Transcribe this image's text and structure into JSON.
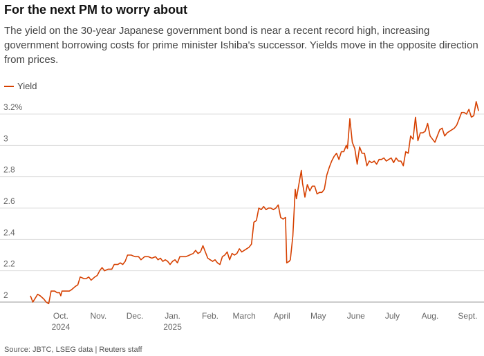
{
  "title": "For the next PM to worry about",
  "subtitle": "The yield on the 30-year Japanese government bond is near a recent record high, increasing government borrowing costs for prime minister Ishiba's successor. Yields move in the opposite direction from prices.",
  "source": "Source: JBTC, LSEG data | Reuters staff",
  "chart_data": {
    "type": "line",
    "title": "For the next PM to worry about",
    "xlabel": "",
    "ylabel": "",
    "ylim": [
      2.0,
      3.3
    ],
    "y_ticks": [
      {
        "value": 3.2,
        "label": "3.2%"
      },
      {
        "value": 3.0,
        "label": "3"
      },
      {
        "value": 2.8,
        "label": "2.8"
      },
      {
        "value": 2.6,
        "label": "2.6"
      },
      {
        "value": 2.4,
        "label": "2.4"
      },
      {
        "value": 2.2,
        "label": "2.2"
      },
      {
        "value": 2.0,
        "label": "2"
      }
    ],
    "x_range": [
      "2024-09-20",
      "2025-09-25"
    ],
    "x_ticks": [
      {
        "date": "2024-10-15",
        "label": "Oct.",
        "sublabel": "2024"
      },
      {
        "date": "2024-11-15",
        "label": "Nov.",
        "sublabel": ""
      },
      {
        "date": "2024-12-15",
        "label": "Dec.",
        "sublabel": ""
      },
      {
        "date": "2025-01-15",
        "label": "Jan.",
        "sublabel": "2025"
      },
      {
        "date": "2025-02-15",
        "label": "Feb.",
        "sublabel": ""
      },
      {
        "date": "2025-03-15",
        "label": "March",
        "sublabel": ""
      },
      {
        "date": "2025-04-15",
        "label": "April",
        "sublabel": ""
      },
      {
        "date": "2025-05-15",
        "label": "May",
        "sublabel": ""
      },
      {
        "date": "2025-06-15",
        "label": "June",
        "sublabel": ""
      },
      {
        "date": "2025-07-15",
        "label": "July",
        "sublabel": ""
      },
      {
        "date": "2025-08-15",
        "label": "Aug.",
        "sublabel": ""
      },
      {
        "date": "2025-09-15",
        "label": "Sept.",
        "sublabel": ""
      }
    ],
    "grid": true,
    "legend": "top-left",
    "series": [
      {
        "name": "Yield",
        "color": "#d64000",
        "points": [
          [
            "2024-09-20",
            2.04
          ],
          [
            "2024-09-22",
            2.0
          ],
          [
            "2024-09-26",
            2.05
          ],
          [
            "2024-09-28",
            2.04
          ],
          [
            "2024-10-01",
            2.02
          ],
          [
            "2024-10-03",
            2.0
          ],
          [
            "2024-10-05",
            1.99
          ],
          [
            "2024-10-07",
            2.07
          ],
          [
            "2024-10-10",
            2.07
          ],
          [
            "2024-10-12",
            2.06
          ],
          [
            "2024-10-14",
            2.06
          ],
          [
            "2024-10-15",
            2.04
          ],
          [
            "2024-10-16",
            2.07
          ],
          [
            "2024-10-18",
            2.07
          ],
          [
            "2024-10-22",
            2.07
          ],
          [
            "2024-10-24",
            2.08
          ],
          [
            "2024-10-27",
            2.1
          ],
          [
            "2024-10-29",
            2.11
          ],
          [
            "2024-10-31",
            2.16
          ],
          [
            "2024-11-03",
            2.15
          ],
          [
            "2024-11-05",
            2.15
          ],
          [
            "2024-11-07",
            2.16
          ],
          [
            "2024-11-09",
            2.14
          ],
          [
            "2024-11-12",
            2.16
          ],
          [
            "2024-11-14",
            2.17
          ],
          [
            "2024-11-16",
            2.2
          ],
          [
            "2024-11-18",
            2.22
          ],
          [
            "2024-11-20",
            2.2
          ],
          [
            "2024-11-23",
            2.21
          ],
          [
            "2024-11-26",
            2.21
          ],
          [
            "2024-11-28",
            2.24
          ],
          [
            "2024-12-01",
            2.24
          ],
          [
            "2024-12-03",
            2.25
          ],
          [
            "2024-12-05",
            2.24
          ],
          [
            "2024-12-07",
            2.26
          ],
          [
            "2024-12-09",
            2.3
          ],
          [
            "2024-12-12",
            2.3
          ],
          [
            "2024-12-15",
            2.29
          ],
          [
            "2024-12-18",
            2.29
          ],
          [
            "2024-12-20",
            2.27
          ],
          [
            "2024-12-23",
            2.29
          ],
          [
            "2024-12-26",
            2.29
          ],
          [
            "2024-12-29",
            2.28
          ],
          [
            "2025-01-01",
            2.29
          ],
          [
            "2025-01-03",
            2.27
          ],
          [
            "2025-01-05",
            2.28
          ],
          [
            "2025-01-07",
            2.26
          ],
          [
            "2025-01-09",
            2.27
          ],
          [
            "2025-01-11",
            2.26
          ],
          [
            "2025-01-13",
            2.24
          ],
          [
            "2025-01-15",
            2.26
          ],
          [
            "2025-01-17",
            2.27
          ],
          [
            "2025-01-19",
            2.25
          ],
          [
            "2025-01-21",
            2.29
          ],
          [
            "2025-01-23",
            2.29
          ],
          [
            "2025-01-26",
            2.29
          ],
          [
            "2025-01-29",
            2.3
          ],
          [
            "2025-02-01",
            2.31
          ],
          [
            "2025-02-03",
            2.33
          ],
          [
            "2025-02-05",
            2.31
          ],
          [
            "2025-02-07",
            2.32
          ],
          [
            "2025-02-09",
            2.36
          ],
          [
            "2025-02-11",
            2.32
          ],
          [
            "2025-02-13",
            2.28
          ],
          [
            "2025-02-15",
            2.27
          ],
          [
            "2025-02-17",
            2.26
          ],
          [
            "2025-02-19",
            2.27
          ],
          [
            "2025-02-21",
            2.25
          ],
          [
            "2025-02-23",
            2.24
          ],
          [
            "2025-02-25",
            2.29
          ],
          [
            "2025-02-27",
            2.3
          ],
          [
            "2025-03-01",
            2.32
          ],
          [
            "2025-03-03",
            2.27
          ],
          [
            "2025-03-05",
            2.31
          ],
          [
            "2025-03-07",
            2.3
          ],
          [
            "2025-03-09",
            2.31
          ],
          [
            "2025-03-11",
            2.34
          ],
          [
            "2025-03-13",
            2.32
          ],
          [
            "2025-03-15",
            2.33
          ],
          [
            "2025-03-17",
            2.34
          ],
          [
            "2025-03-19",
            2.35
          ],
          [
            "2025-03-21",
            2.37
          ],
          [
            "2025-03-23",
            2.51
          ],
          [
            "2025-03-25",
            2.52
          ],
          [
            "2025-03-27",
            2.6
          ],
          [
            "2025-03-29",
            2.59
          ],
          [
            "2025-03-31",
            2.61
          ],
          [
            "2025-04-02",
            2.59
          ],
          [
            "2025-04-04",
            2.6
          ],
          [
            "2025-04-06",
            2.6
          ],
          [
            "2025-04-08",
            2.59
          ],
          [
            "2025-04-10",
            2.6
          ],
          [
            "2025-04-12",
            2.62
          ],
          [
            "2025-04-14",
            2.54
          ],
          [
            "2025-04-16",
            2.53
          ],
          [
            "2025-04-18",
            2.54
          ],
          [
            "2025-04-19",
            2.25
          ],
          [
            "2025-04-21",
            2.26
          ],
          [
            "2025-04-22",
            2.27
          ],
          [
            "2025-04-24",
            2.42
          ],
          [
            "2025-04-26",
            2.72
          ],
          [
            "2025-04-27",
            2.66
          ],
          [
            "2025-04-29",
            2.75
          ],
          [
            "2025-05-01",
            2.84
          ],
          [
            "2025-05-02",
            2.76
          ],
          [
            "2025-05-04",
            2.67
          ],
          [
            "2025-05-06",
            2.75
          ],
          [
            "2025-05-08",
            2.71
          ],
          [
            "2025-05-10",
            2.74
          ],
          [
            "2025-05-12",
            2.74
          ],
          [
            "2025-05-14",
            2.69
          ],
          [
            "2025-05-16",
            2.7
          ],
          [
            "2025-05-18",
            2.7
          ],
          [
            "2025-05-20",
            2.72
          ],
          [
            "2025-05-22",
            2.81
          ],
          [
            "2025-05-24",
            2.86
          ],
          [
            "2025-05-26",
            2.9
          ],
          [
            "2025-05-28",
            2.93
          ],
          [
            "2025-05-30",
            2.95
          ],
          [
            "2025-06-01",
            2.91
          ],
          [
            "2025-06-03",
            2.96
          ],
          [
            "2025-06-05",
            2.96
          ],
          [
            "2025-06-07",
            3.0
          ],
          [
            "2025-06-08",
            2.98
          ],
          [
            "2025-06-10",
            3.17
          ],
          [
            "2025-06-12",
            3.02
          ],
          [
            "2025-06-14",
            2.98
          ],
          [
            "2025-06-16",
            2.88
          ],
          [
            "2025-06-18",
            2.99
          ],
          [
            "2025-06-20",
            2.95
          ],
          [
            "2025-06-22",
            2.95
          ],
          [
            "2025-06-24",
            2.87
          ],
          [
            "2025-06-26",
            2.9
          ],
          [
            "2025-06-28",
            2.89
          ],
          [
            "2025-06-30",
            2.9
          ],
          [
            "2025-07-02",
            2.88
          ],
          [
            "2025-07-04",
            2.91
          ],
          [
            "2025-07-06",
            2.91
          ],
          [
            "2025-07-08",
            2.92
          ],
          [
            "2025-07-10",
            2.9
          ],
          [
            "2025-07-12",
            2.91
          ],
          [
            "2025-07-14",
            2.92
          ],
          [
            "2025-07-16",
            2.89
          ],
          [
            "2025-07-18",
            2.92
          ],
          [
            "2025-07-20",
            2.9
          ],
          [
            "2025-07-22",
            2.9
          ],
          [
            "2025-07-24",
            2.87
          ],
          [
            "2025-07-26",
            2.96
          ],
          [
            "2025-07-28",
            2.95
          ],
          [
            "2025-07-30",
            3.06
          ],
          [
            "2025-08-01",
            3.04
          ],
          [
            "2025-08-03",
            3.18
          ],
          [
            "2025-08-05",
            3.03
          ],
          [
            "2025-08-07",
            3.08
          ],
          [
            "2025-08-09",
            3.08
          ],
          [
            "2025-08-11",
            3.09
          ],
          [
            "2025-08-13",
            3.14
          ],
          [
            "2025-08-15",
            3.06
          ],
          [
            "2025-08-17",
            3.04
          ],
          [
            "2025-08-19",
            3.02
          ],
          [
            "2025-08-21",
            3.06
          ],
          [
            "2025-08-23",
            3.1
          ],
          [
            "2025-08-25",
            3.11
          ],
          [
            "2025-08-27",
            3.06
          ],
          [
            "2025-08-29",
            3.08
          ],
          [
            "2025-08-31",
            3.09
          ],
          [
            "2025-09-02",
            3.1
          ],
          [
            "2025-09-04",
            3.11
          ],
          [
            "2025-09-06",
            3.13
          ],
          [
            "2025-09-08",
            3.17
          ],
          [
            "2025-09-10",
            3.21
          ],
          [
            "2025-09-12",
            3.21
          ],
          [
            "2025-09-14",
            3.2
          ],
          [
            "2025-09-16",
            3.23
          ],
          [
            "2025-09-18",
            3.18
          ],
          [
            "2025-09-20",
            3.19
          ],
          [
            "2025-09-22",
            3.28
          ],
          [
            "2025-09-24",
            3.22
          ]
        ]
      }
    ]
  }
}
